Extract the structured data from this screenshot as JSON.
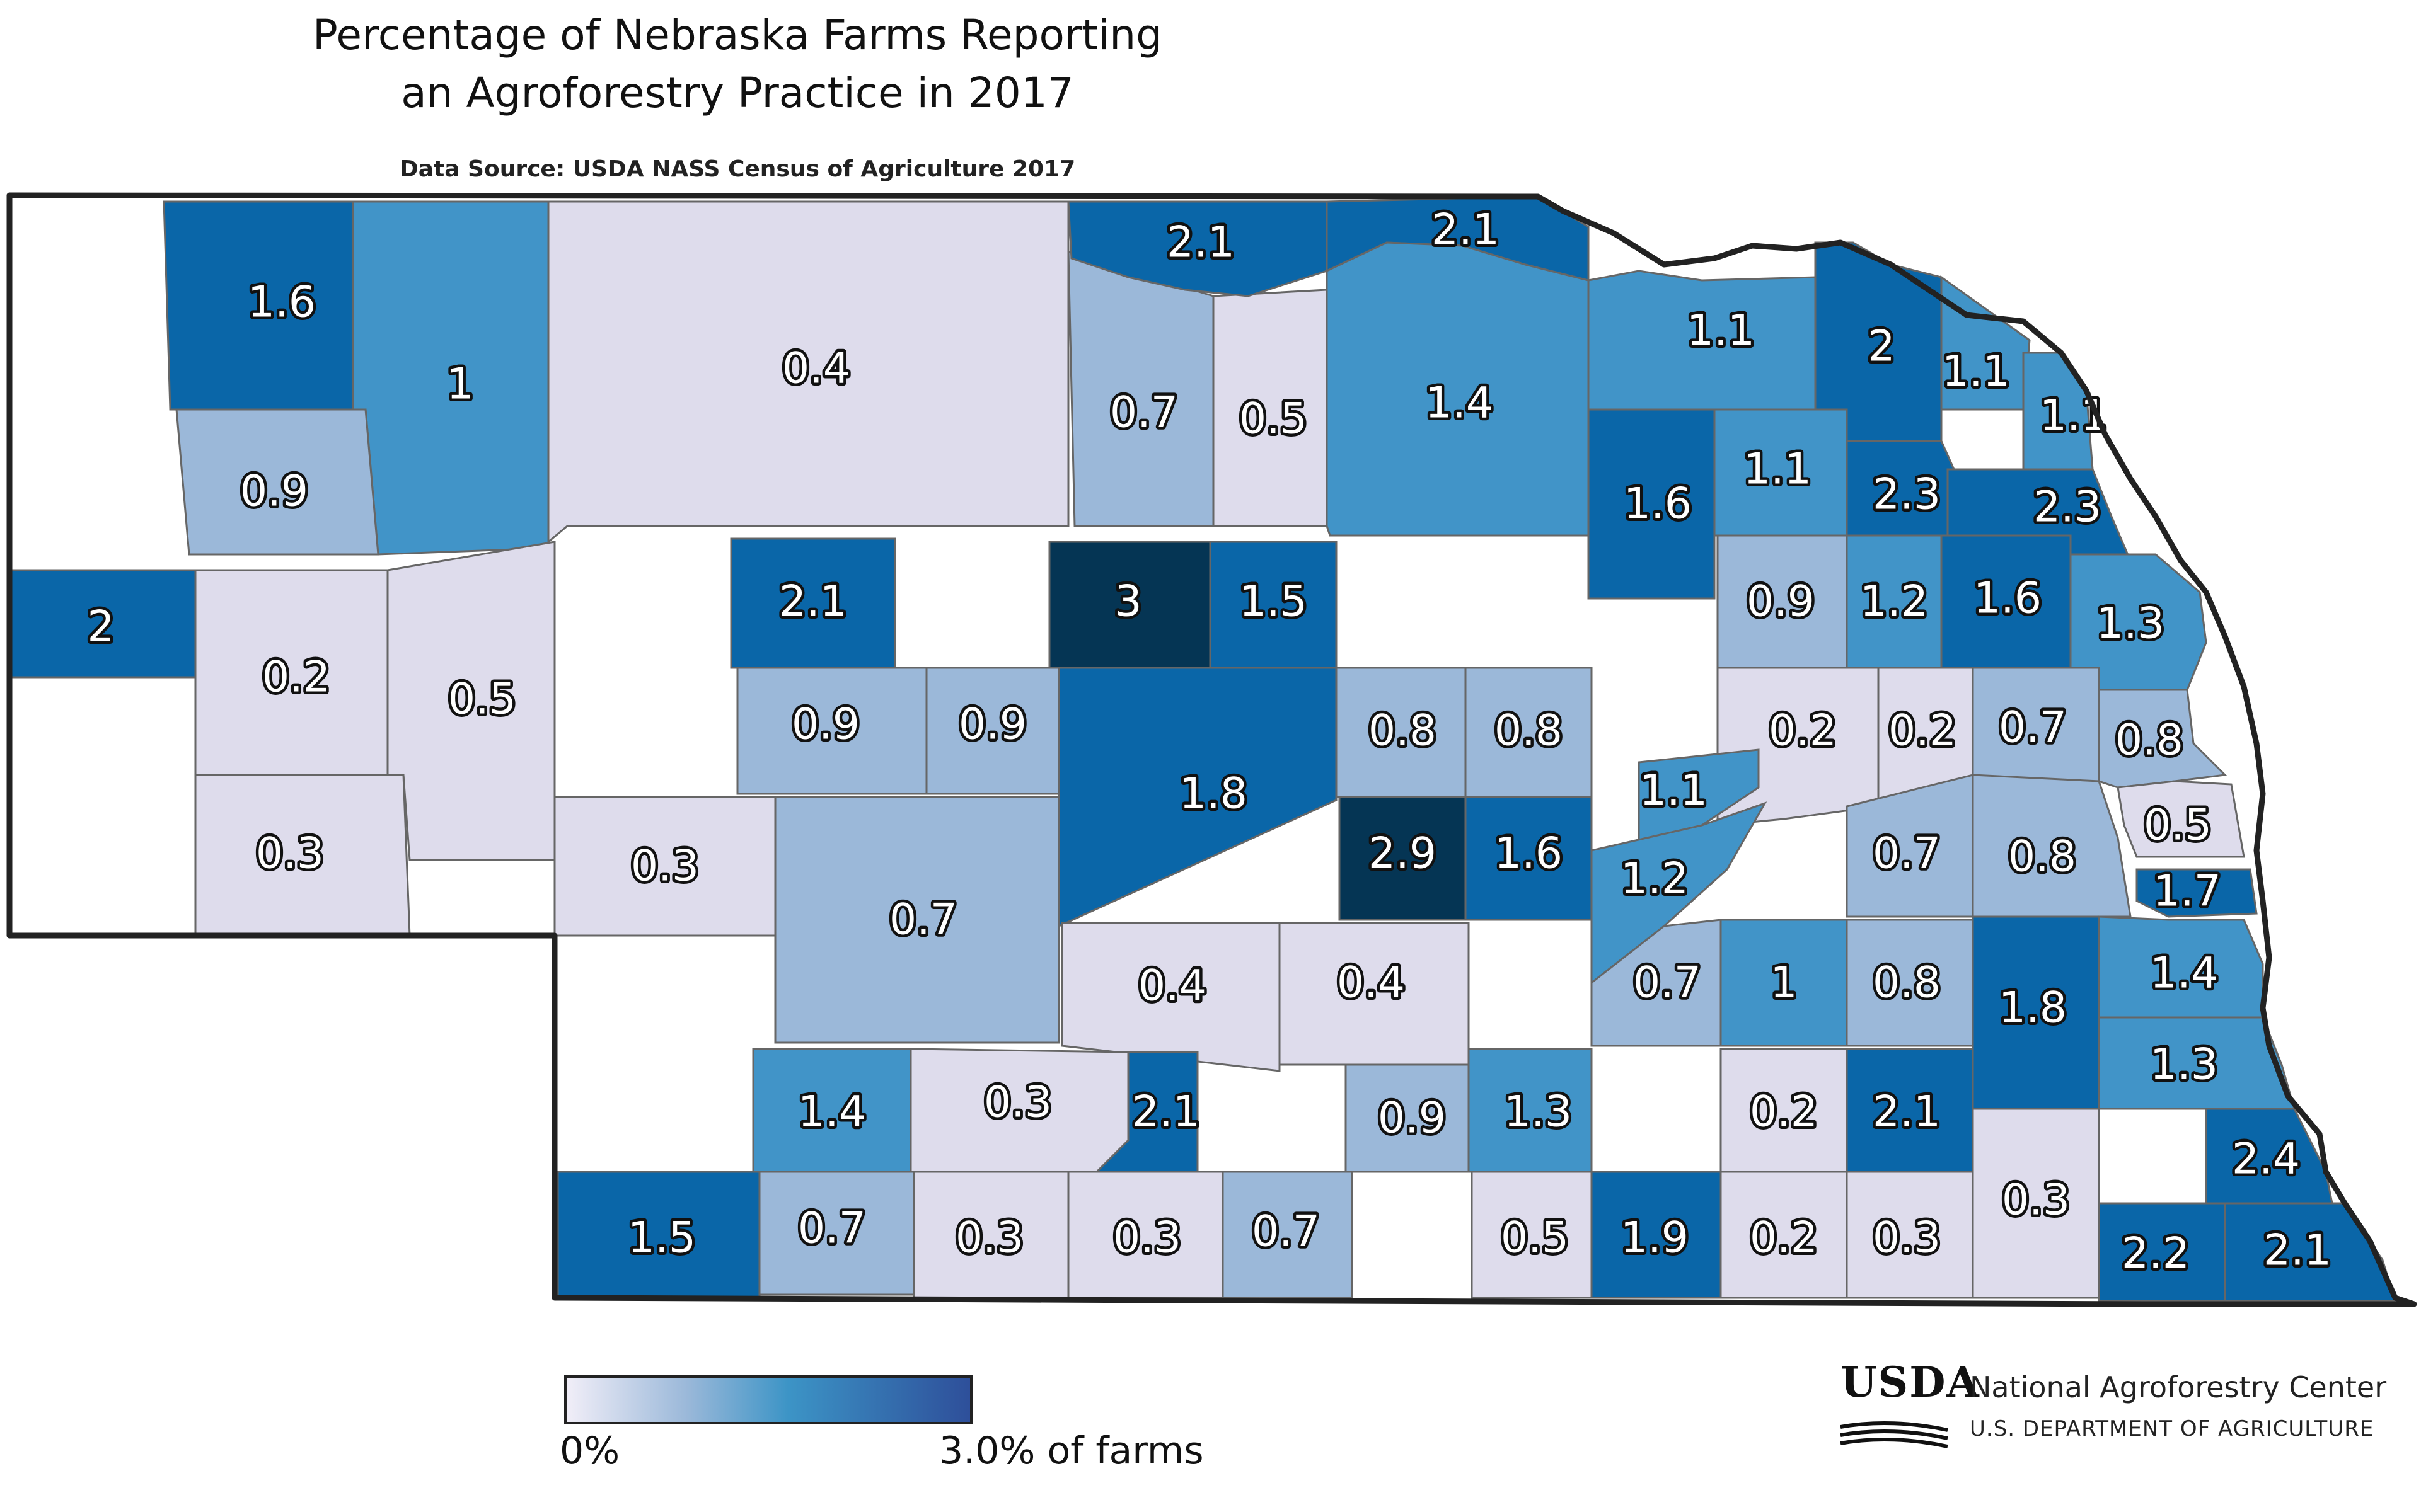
{
  "title_line1": "Percentage of Nebraska Farms Reporting",
  "title_line2": "an Agroforestry Practice in 2017",
  "subtitle": "Data Source: USDA NASS Census of Agriculture 2017",
  "legend": {
    "min_label": "0%",
    "max_label": "3.0% of farms"
  },
  "logo": {
    "mark_text": "USDA",
    "org_name": "National Agroforestry Center",
    "org_dept": "U.S. DEPARTMENT OF AGRICULTURE"
  },
  "colors": {
    "no_data": "#ffffff",
    "lightest": "#dedcec",
    "light": "#9bb8d9",
    "medium": "#4194c8",
    "dark": "#0a66a8",
    "darkest": "#053554",
    "border": "#666666",
    "outline": "#222222"
  },
  "counties": [
    {
      "label": "1.6"
    },
    {
      "label": "1"
    },
    {
      "label": "0.4"
    },
    {
      "label": "0.7"
    },
    {
      "label": "0.5"
    },
    {
      "label": "2.1"
    },
    {
      "label": "2.1"
    },
    {
      "label": "1.4"
    },
    {
      "label": "1.1"
    },
    {
      "label": "2"
    },
    {
      "label": "1.1"
    },
    {
      "label": "1.1"
    },
    {
      "label": "0.9"
    },
    {
      "label": "1.6"
    },
    {
      "label": "1.1"
    },
    {
      "label": "2.3"
    },
    {
      "label": "2.3"
    },
    {
      "label": "2"
    },
    {
      "label": "0.2"
    },
    {
      "label": "0.5"
    },
    {
      "label": "2.1"
    },
    {
      "label": "3"
    },
    {
      "label": "1.5"
    },
    {
      "label": "0.9"
    },
    {
      "label": "1.2"
    },
    {
      "label": "1.6"
    },
    {
      "label": "1.3"
    },
    {
      "label": "0.9"
    },
    {
      "label": "0.9"
    },
    {
      "label": "1.8"
    },
    {
      "label": "0.8"
    },
    {
      "label": "0.8"
    },
    {
      "label": "0.2"
    },
    {
      "label": "0.2"
    },
    {
      "label": "0.7"
    },
    {
      "label": "0.8"
    },
    {
      "label": "0.3"
    },
    {
      "label": "0.3"
    },
    {
      "label": "0.7"
    },
    {
      "label": "2.9"
    },
    {
      "label": "1.6"
    },
    {
      "label": "1.1"
    },
    {
      "label": "1.2"
    },
    {
      "label": "0.7"
    },
    {
      "label": "0.8"
    },
    {
      "label": "0.5"
    },
    {
      "label": "1.7"
    },
    {
      "label": "0.4"
    },
    {
      "label": "0.4"
    },
    {
      "label": "0.7"
    },
    {
      "label": "1"
    },
    {
      "label": "0.8"
    },
    {
      "label": "1.8"
    },
    {
      "label": "1.4"
    },
    {
      "label": "1.4"
    },
    {
      "label": "0.3"
    },
    {
      "label": "2.1"
    },
    {
      "label": "0.9"
    },
    {
      "label": "1.3"
    },
    {
      "label": "0.2"
    },
    {
      "label": "2.1"
    },
    {
      "label": "1.3"
    },
    {
      "label": "2.4"
    },
    {
      "label": "1.5"
    },
    {
      "label": "0.7"
    },
    {
      "label": "0.3"
    },
    {
      "label": "0.3"
    },
    {
      "label": "0.7"
    },
    {
      "label": "0.5"
    },
    {
      "label": "1.9"
    },
    {
      "label": "0.2"
    },
    {
      "label": "0.3"
    },
    {
      "label": "0.3"
    },
    {
      "label": "2.2"
    },
    {
      "label": "2.1"
    }
  ]
}
